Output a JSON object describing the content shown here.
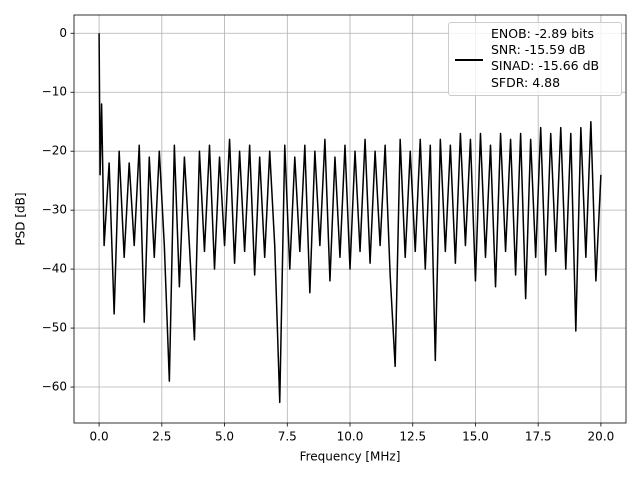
{
  "chart_data": {
    "type": "line",
    "x_label": "Frequency [MHz]",
    "y_label": "PSD [dB]",
    "x": [
      0,
      0.04,
      0.1,
      0.2,
      0.4,
      0.6,
      0.8,
      1.0,
      1.2,
      1.4,
      1.6,
      1.8,
      2.0,
      2.2,
      2.4,
      2.6,
      2.8,
      3.0,
      3.2,
      3.4,
      3.6,
      3.8,
      4.0,
      4.2,
      4.4,
      4.6,
      4.8,
      5.0,
      5.2,
      5.4,
      5.6,
      5.8,
      6.0,
      6.2,
      6.4,
      6.6,
      6.8,
      7.0,
      7.2,
      7.4,
      7.6,
      7.8,
      8.0,
      8.2,
      8.4,
      8.6,
      8.8,
      9.0,
      9.2,
      9.4,
      9.6,
      9.8,
      10.0,
      10.2,
      10.4,
      10.6,
      10.8,
      11.0,
      11.2,
      11.4,
      11.6,
      11.8,
      12.0,
      12.2,
      12.4,
      12.6,
      12.8,
      13.0,
      13.2,
      13.4,
      13.6,
      13.8,
      14.0,
      14.2,
      14.4,
      14.6,
      14.8,
      15.0,
      15.2,
      15.4,
      15.6,
      15.8,
      16.0,
      16.2,
      16.4,
      16.6,
      16.8,
      17.0,
      17.2,
      17.4,
      17.6,
      17.8,
      18.0,
      18.2,
      18.4,
      18.6,
      18.8,
      19.0,
      19.2,
      19.4,
      19.6,
      19.8,
      20.0
    ],
    "series": [
      {
        "name": "ENOB: -2.89 bits\nSNR: -15.59 dB\nSINAD: -15.66 dB\nSFDR: 4.88",
        "color": "#000000",
        "values": [
          0,
          -24,
          -12,
          -36,
          -22,
          -47.6,
          -20,
          -38,
          -22,
          -36,
          -19,
          -49,
          -21,
          -38,
          -20,
          -36,
          -59,
          -19,
          -43,
          -21,
          -36,
          -52,
          -20,
          -37,
          -19,
          -40,
          -21,
          -36,
          -18,
          -39,
          -20,
          -37,
          -19,
          -41,
          -21,
          -38,
          -20,
          -36,
          -62.6,
          -19,
          -40,
          -21,
          -37,
          -19,
          -44,
          -20,
          -36,
          -18,
          -42,
          -21,
          -38,
          -19,
          -40,
          -20,
          -37,
          -18,
          -39,
          -20,
          -36,
          -19,
          -41,
          -56.5,
          -18,
          -38,
          -20,
          -37,
          -18,
          -40,
          -19,
          -55.5,
          -18,
          -37,
          -19,
          -39,
          -17,
          -36,
          -18,
          -42,
          -17,
          -38,
          -19,
          -43,
          -17,
          -37,
          -18,
          -41,
          -17,
          -45,
          -18,
          -38,
          -16,
          -41,
          -17,
          -37,
          -16,
          -40,
          -17,
          -50.5,
          -16,
          -38,
          -15,
          -42,
          -24
        ]
      }
    ],
    "xlim": [
      -1,
      21
    ],
    "ylim": [
      -66.1,
      3.1
    ],
    "xticks": [
      {
        "value": 0,
        "label": "0.0"
      },
      2.5,
      {
        "value": 5,
        "label": "5.0"
      },
      7.5,
      {
        "value": 10,
        "label": "10.0"
      },
      12.5,
      {
        "value": 15,
        "label": "15.0"
      },
      17.5,
      {
        "value": 20,
        "label": "20.0"
      }
    ],
    "yticks": [
      0,
      {
        "value": -10,
        "label": "−10"
      },
      {
        "value": -20,
        "label": "−20"
      },
      {
        "value": -30,
        "label": "−30"
      },
      {
        "value": -40,
        "label": "−40"
      },
      {
        "value": -50,
        "label": "−50"
      },
      {
        "value": -60,
        "label": "−60"
      }
    ],
    "grid": true,
    "legend": "upper right"
  }
}
